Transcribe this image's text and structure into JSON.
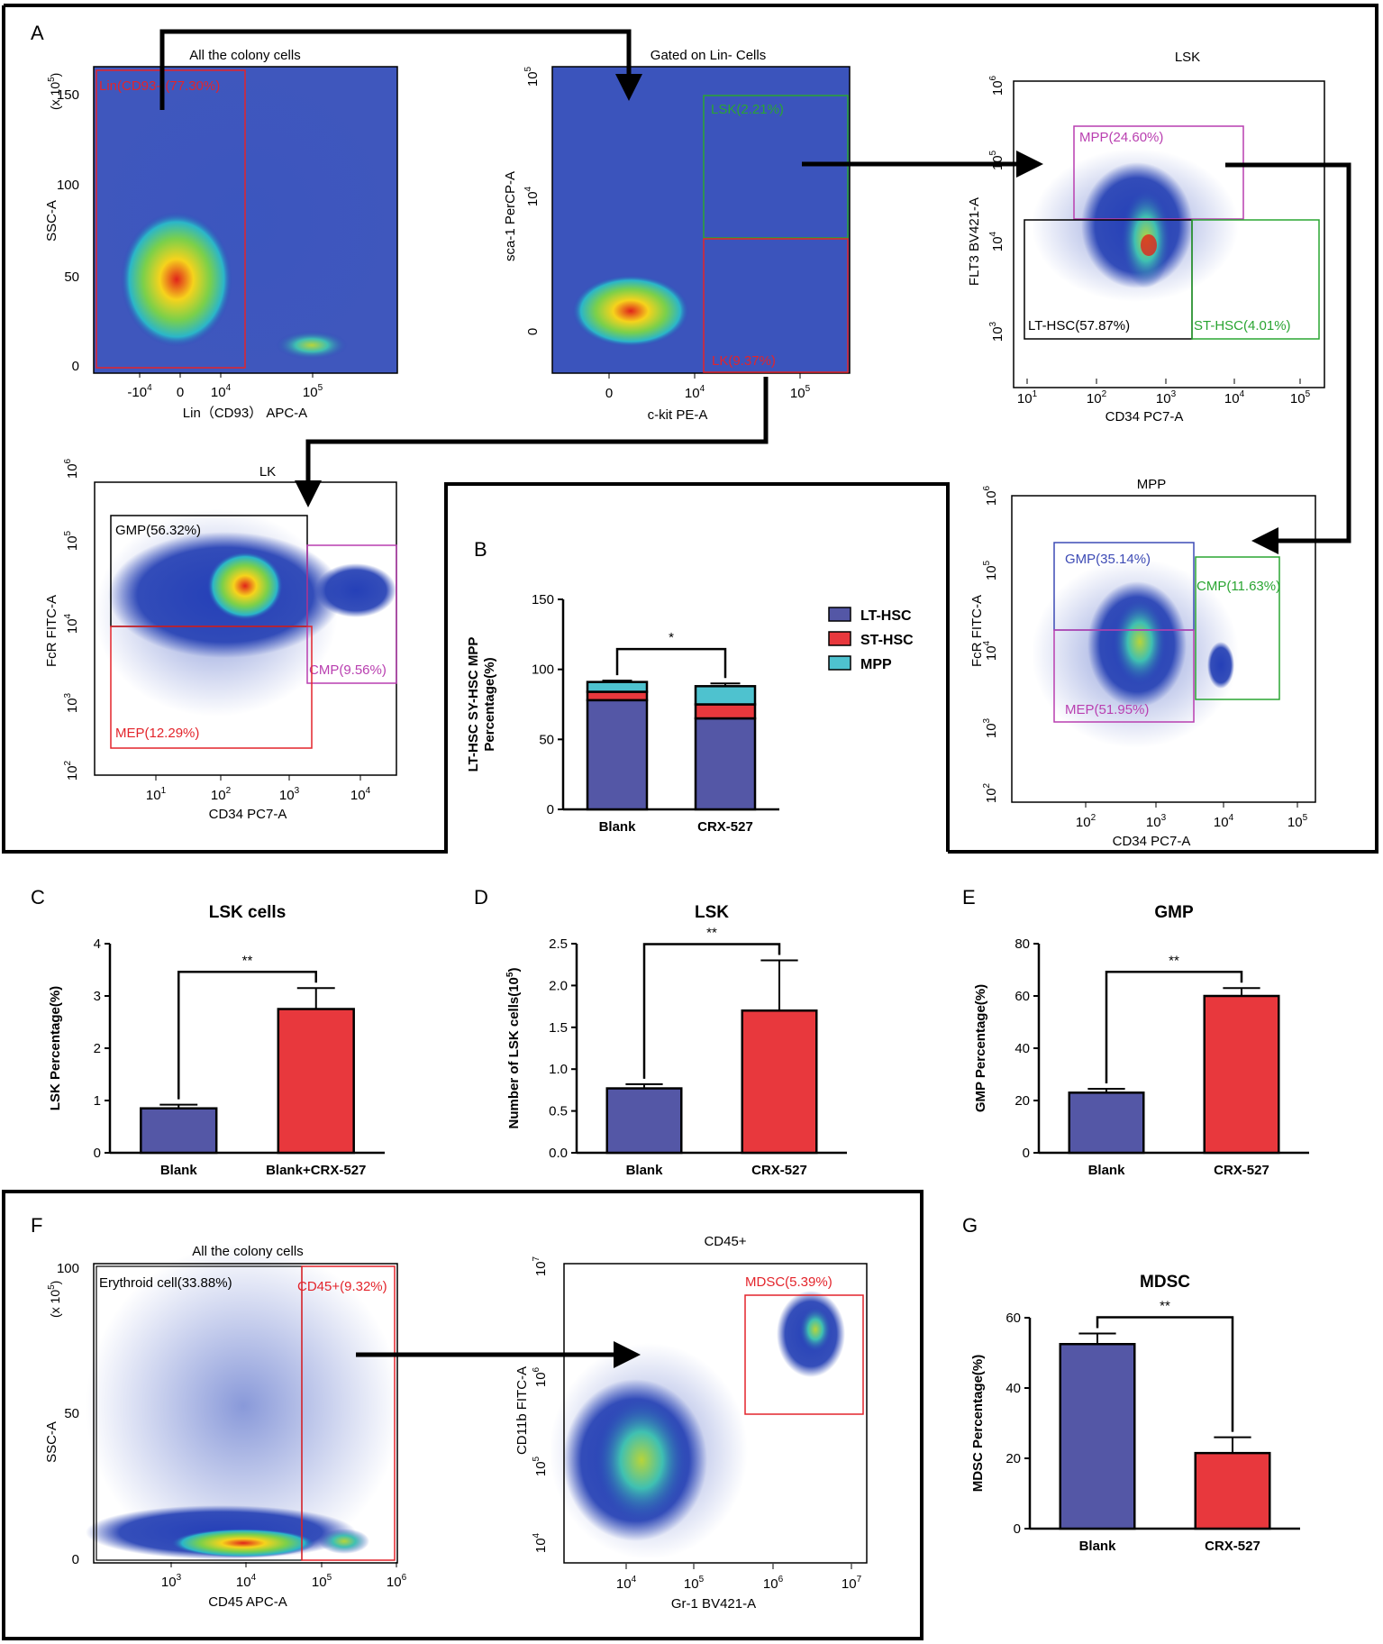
{
  "panel_letters": {
    "A": "A",
    "B": "B",
    "C": "C",
    "D": "D",
    "E": "E",
    "F": "F",
    "G": "G"
  },
  "colors": {
    "blue": "#5457a6",
    "red": "#e8383d",
    "cyan": "#4ec2cf",
    "gate_red": "#e3242b",
    "gate_green": "#2aa532",
    "gate_magenta": "#b93fb0",
    "gate_blue": "#3d4bb5",
    "gate_black": "#000000"
  },
  "chart_data": [
    {
      "id": "flow_all",
      "type": "scatter",
      "subtype": "flow-density",
      "title": "All the colony cells",
      "xlabel": "Lin（CD93） APC-A",
      "ylabel": "SSC-A",
      "y_multiplier": "(x 10",
      "y_multiplier_exp": "5",
      "y_multiplier_close": ")",
      "xticks": [
        "-10",
        "4",
        "0",
        "10",
        "4",
        "10",
        "5"
      ],
      "xtick_labels": [
        {
          "base": "-10",
          "exp": "4"
        },
        {
          "base": "0",
          "exp": ""
        },
        {
          "base": "10",
          "exp": "4"
        },
        {
          "base": "10",
          "exp": "5"
        }
      ],
      "yticks": [
        "0",
        "50",
        "100",
        "150"
      ],
      "gates": [
        {
          "label": "Lin(CD93-)(77.30%)",
          "color": "red"
        }
      ]
    },
    {
      "id": "flow_lin",
      "type": "scatter",
      "subtype": "flow-density",
      "title": "Gated on Lin- Cells",
      "xlabel": "c-kit PE-A",
      "ylabel": "sca-1 PerCP-A",
      "xtick_labels": [
        {
          "base": "0",
          "exp": ""
        },
        {
          "base": "10",
          "exp": "4"
        },
        {
          "base": "10",
          "exp": "5"
        }
      ],
      "ytick_labels": [
        {
          "base": "0",
          "exp": ""
        },
        {
          "base": "10",
          "exp": "4"
        },
        {
          "base": "10",
          "exp": "5"
        }
      ],
      "gates": [
        {
          "label": "LSK(2.21%)",
          "color": "green"
        },
        {
          "label": "LK(9.37%)",
          "color": "red"
        }
      ]
    },
    {
      "id": "flow_lsk",
      "type": "scatter",
      "subtype": "flow-density",
      "title": "LSK",
      "xlabel": "CD34 PC7-A",
      "ylabel": "FLT3 BV421-A",
      "xtick_labels": [
        {
          "base": "10",
          "exp": "1"
        },
        {
          "base": "10",
          "exp": "2"
        },
        {
          "base": "10",
          "exp": "3"
        },
        {
          "base": "10",
          "exp": "4"
        },
        {
          "base": "10",
          "exp": "5"
        }
      ],
      "ytick_labels": [
        {
          "base": "10",
          "exp": "3"
        },
        {
          "base": "10",
          "exp": "4"
        },
        {
          "base": "10",
          "exp": "5"
        },
        {
          "base": "10",
          "exp": "6"
        }
      ],
      "gates": [
        {
          "label": "MPP(24.60%)",
          "color": "magenta"
        },
        {
          "label": "LT-HSC(57.87%)",
          "color": "black"
        },
        {
          "label": "ST-HSC(4.01%)",
          "color": "green"
        }
      ]
    },
    {
      "id": "flow_lk",
      "type": "scatter",
      "subtype": "flow-density",
      "title": "LK",
      "xlabel": "CD34 PC7-A",
      "ylabel": "FcR FITC-A",
      "xtick_labels": [
        {
          "base": "10",
          "exp": "1"
        },
        {
          "base": "10",
          "exp": "2"
        },
        {
          "base": "10",
          "exp": "3"
        },
        {
          "base": "10",
          "exp": "4"
        }
      ],
      "ytick_labels": [
        {
          "base": "10",
          "exp": "2"
        },
        {
          "base": "10",
          "exp": "3"
        },
        {
          "base": "10",
          "exp": "4"
        },
        {
          "base": "10",
          "exp": "5"
        },
        {
          "base": "10",
          "exp": "6"
        }
      ],
      "gates": [
        {
          "label": "GMP(56.32%)",
          "color": "black"
        },
        {
          "label": "CMP(9.56%)",
          "color": "magenta"
        },
        {
          "label": "MEP(12.29%)",
          "color": "red"
        }
      ]
    },
    {
      "id": "flow_mpp",
      "type": "scatter",
      "subtype": "flow-density",
      "title": "MPP",
      "xlabel": "CD34 PC7-A",
      "ylabel": "FcR FITC-A",
      "xtick_labels": [
        {
          "base": "10",
          "exp": "2"
        },
        {
          "base": "10",
          "exp": "3"
        },
        {
          "base": "10",
          "exp": "4"
        },
        {
          "base": "10",
          "exp": "5"
        }
      ],
      "ytick_labels": [
        {
          "base": "10",
          "exp": "2"
        },
        {
          "base": "10",
          "exp": "3"
        },
        {
          "base": "10",
          "exp": "4"
        },
        {
          "base": "10",
          "exp": "5"
        },
        {
          "base": "10",
          "exp": "6"
        }
      ],
      "gates": [
        {
          "label": "GMP(35.14%)",
          "color": "blue"
        },
        {
          "label": "CMP(11.63%)",
          "color": "green"
        },
        {
          "label": "MEP(51.95%)",
          "color": "magenta"
        }
      ]
    },
    {
      "id": "bar_B",
      "type": "bar",
      "stacked": true,
      "title": "",
      "ylabel_lines": [
        "LT-HSC SY-HSC MPP",
        "Percentage(%)"
      ],
      "categories": [
        "Blank",
        "CRX-527"
      ],
      "ylim": [
        0,
        150
      ],
      "yticks": [
        0,
        50,
        100,
        150
      ],
      "series": [
        {
          "name": "LT-HSC",
          "values": [
            78,
            65
          ],
          "color": "blue",
          "errors": [
            2,
            3
          ]
        },
        {
          "name": "ST-HSC",
          "values": [
            6,
            10
          ],
          "color": "red",
          "errors": [
            1,
            2
          ]
        },
        {
          "name": "MPP",
          "values": [
            7,
            13
          ],
          "color": "cyan",
          "errors": [
            1,
            2
          ]
        }
      ],
      "significance": "*"
    },
    {
      "id": "bar_C",
      "type": "bar",
      "title": "LSK cells",
      "ylabel": "LSK Percentage(%)",
      "categories": [
        "Blank",
        "Blank+CRX-527"
      ],
      "values": [
        0.85,
        2.75
      ],
      "errors": [
        0.07,
        0.4
      ],
      "ylim": [
        0,
        4
      ],
      "yticks": [
        0,
        1,
        2,
        3,
        4
      ],
      "significance": "**"
    },
    {
      "id": "bar_D",
      "type": "bar",
      "title": "LSK",
      "ylabel": "Number of LSK cells(10",
      "ylabel_exp": "5",
      "ylabel_close": ")",
      "categories": [
        "Blank",
        "CRX-527"
      ],
      "values": [
        0.77,
        1.7
      ],
      "errors": [
        0.05,
        0.6
      ],
      "ylim": [
        0,
        2.5
      ],
      "yticks": [
        "0.0",
        "0.5",
        "1.0",
        "1.5",
        "2.0",
        "2.5"
      ],
      "significance": "**"
    },
    {
      "id": "bar_E",
      "type": "bar",
      "title": "GMP",
      "ylabel": "GMP Percentage(%)",
      "categories": [
        "Blank",
        "CRX-527"
      ],
      "values": [
        23,
        60
      ],
      "errors": [
        1.5,
        3
      ],
      "ylim": [
        0,
        80
      ],
      "yticks": [
        0,
        20,
        40,
        60,
        80
      ],
      "significance": "**"
    },
    {
      "id": "flow_colony2",
      "type": "scatter",
      "subtype": "flow-density",
      "title": "All the colony cells",
      "xlabel": "CD45 APC-A",
      "ylabel": "SSC-A",
      "y_multiplier": "(x 10",
      "y_multiplier_exp": "5",
      "y_multiplier_close": ")",
      "xtick_labels": [
        {
          "base": "10",
          "exp": "3"
        },
        {
          "base": "10",
          "exp": "4"
        },
        {
          "base": "10",
          "exp": "5"
        },
        {
          "base": "10",
          "exp": "6"
        }
      ],
      "yticks": [
        "0",
        "50",
        "100"
      ],
      "gates": [
        {
          "label": "Erythroid cell(33.88%)",
          "color": "black"
        },
        {
          "label": "CD45+(9.32%)",
          "color": "red"
        }
      ]
    },
    {
      "id": "flow_cd45",
      "type": "scatter",
      "subtype": "flow-density",
      "title": "CD45+",
      "xlabel": "Gr-1 BV421-A",
      "ylabel": "CD11b FITC-A",
      "xtick_labels": [
        {
          "base": "10",
          "exp": "4"
        },
        {
          "base": "10",
          "exp": "5"
        },
        {
          "base": "10",
          "exp": "6"
        },
        {
          "base": "10",
          "exp": "7"
        }
      ],
      "ytick_labels": [
        {
          "base": "10",
          "exp": "4"
        },
        {
          "base": "10",
          "exp": "5"
        },
        {
          "base": "10",
          "exp": "6"
        },
        {
          "base": "10",
          "exp": "7"
        }
      ],
      "gates": [
        {
          "label": "MDSC(5.39%)",
          "color": "red"
        }
      ]
    },
    {
      "id": "bar_G",
      "type": "bar",
      "title": "MDSC",
      "ylabel": "MDSC Percentage(%)",
      "categories": [
        "Blank",
        "CRX-527"
      ],
      "values": [
        52.5,
        21.5
      ],
      "errors": [
        3,
        4.5
      ],
      "ylim": [
        0,
        60
      ],
      "yticks": [
        0,
        20,
        40,
        60
      ],
      "significance": "**"
    }
  ]
}
